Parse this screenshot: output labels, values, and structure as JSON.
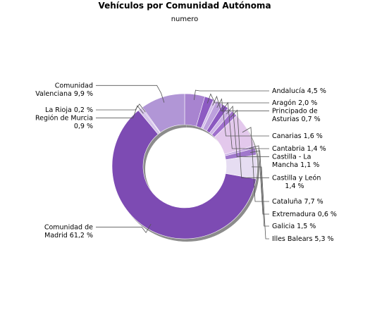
{
  "chart_data": {
    "type": "pie",
    "donut": true,
    "title": "Vehículos por Comunidad Autónoma",
    "subtitle": "numero",
    "unit": "%",
    "slices": [
      {
        "name": "Andalucía",
        "value": 4.5,
        "label": [
          "Andalucía 4,5 %"
        ],
        "color": "#a884d0"
      },
      {
        "name": "Aragón",
        "value": 2.0,
        "label": [
          "Aragón 2,0 %"
        ],
        "color": "#8d5bc2"
      },
      {
        "name": "Principado de Asturias",
        "value": 0.7,
        "label": [
          "Principado de",
          "Asturias 0,7 %"
        ],
        "color": "#d2bde9"
      },
      {
        "name": "Canarias",
        "value": 1.6,
        "label": [
          "Canarias 1,6 %"
        ],
        "color": "#bda0dd"
      },
      {
        "name": "Cantabria",
        "value": 1.4,
        "label": [
          "Cantabria 1,4 %"
        ],
        "color": "#8b58c0"
      },
      {
        "name": "Castilla - La Mancha",
        "value": 1.1,
        "label": [
          "Castilla - La",
          "Mancha 1,1 %"
        ],
        "color": "#cdb3e6"
      },
      {
        "name": "Castilla y León",
        "value": 1.4,
        "label": [
          "Castilla y León",
          "1,4 %"
        ],
        "color": "#9f6fcc"
      },
      {
        "name": "Cataluña",
        "value": 7.7,
        "label": [
          "Cataluña 7,7 %"
        ],
        "color": "#e3c8ec"
      },
      {
        "name": "Extremadura",
        "value": 0.6,
        "label": [
          "Extremadura 0,6 %"
        ],
        "color": "#c6a9e2"
      },
      {
        "name": "Galicia",
        "value": 1.5,
        "label": [
          "Galicia 1,5 %"
        ],
        "color": "#a078cc"
      },
      {
        "name": "Illes Balears",
        "value": 5.3,
        "label": [
          "Illes Balears 5,3 %"
        ],
        "color": "#e6ddf2"
      },
      {
        "name": "Comunidad de Madrid",
        "value": 61.2,
        "label": [
          "Comunidad de",
          "Madrid 61,2 %"
        ],
        "color": "#7d4bb3"
      },
      {
        "name": "Región de Murcia",
        "value": 0.9,
        "label": [
          "Región de Murcia",
          "0,9 %"
        ],
        "color": "#d5c4ea"
      },
      {
        "name": "La Rioja",
        "value": 0.2,
        "label": [
          "La Rioja 0,2 %"
        ],
        "color": "#9a6cc8"
      },
      {
        "name": "Comunidad Valenciana",
        "value": 9.9,
        "label": [
          "Comunidad",
          "Valenciana 9,9 %"
        ],
        "color": "#b196d6"
      }
    ]
  }
}
